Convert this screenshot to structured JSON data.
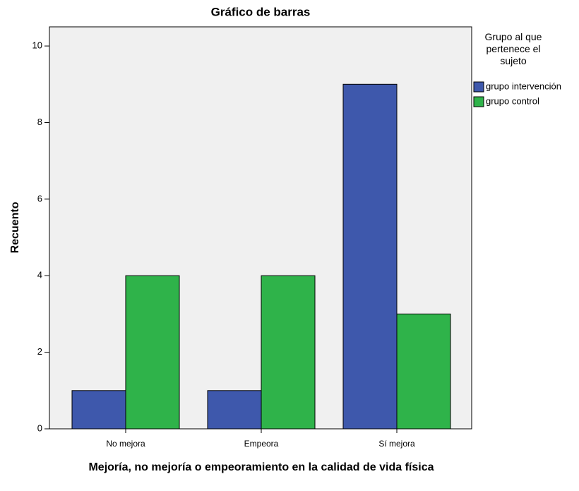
{
  "chart_data": {
    "type": "bar",
    "title": "Gráfico de barras",
    "x_label": "Mejoría, no mejoría o empeoramiento en la calidad de vida física",
    "y_label": "Recuento",
    "legend_title": "Grupo al que pertenece el sujeto",
    "legend_position": "right",
    "categories": [
      "No mejora",
      "Empeora",
      "Sí mejora"
    ],
    "series": [
      {
        "name": "grupo intervención",
        "color": "#3e58ac",
        "values": [
          1,
          1,
          9
        ]
      },
      {
        "name": "grupo control",
        "color": "#2fb34a",
        "values": [
          4,
          4,
          3
        ]
      }
    ],
    "ylim": [
      0,
      10.5
    ],
    "yticks": [
      0,
      2,
      4,
      6,
      8,
      10
    ],
    "grid": false
  }
}
